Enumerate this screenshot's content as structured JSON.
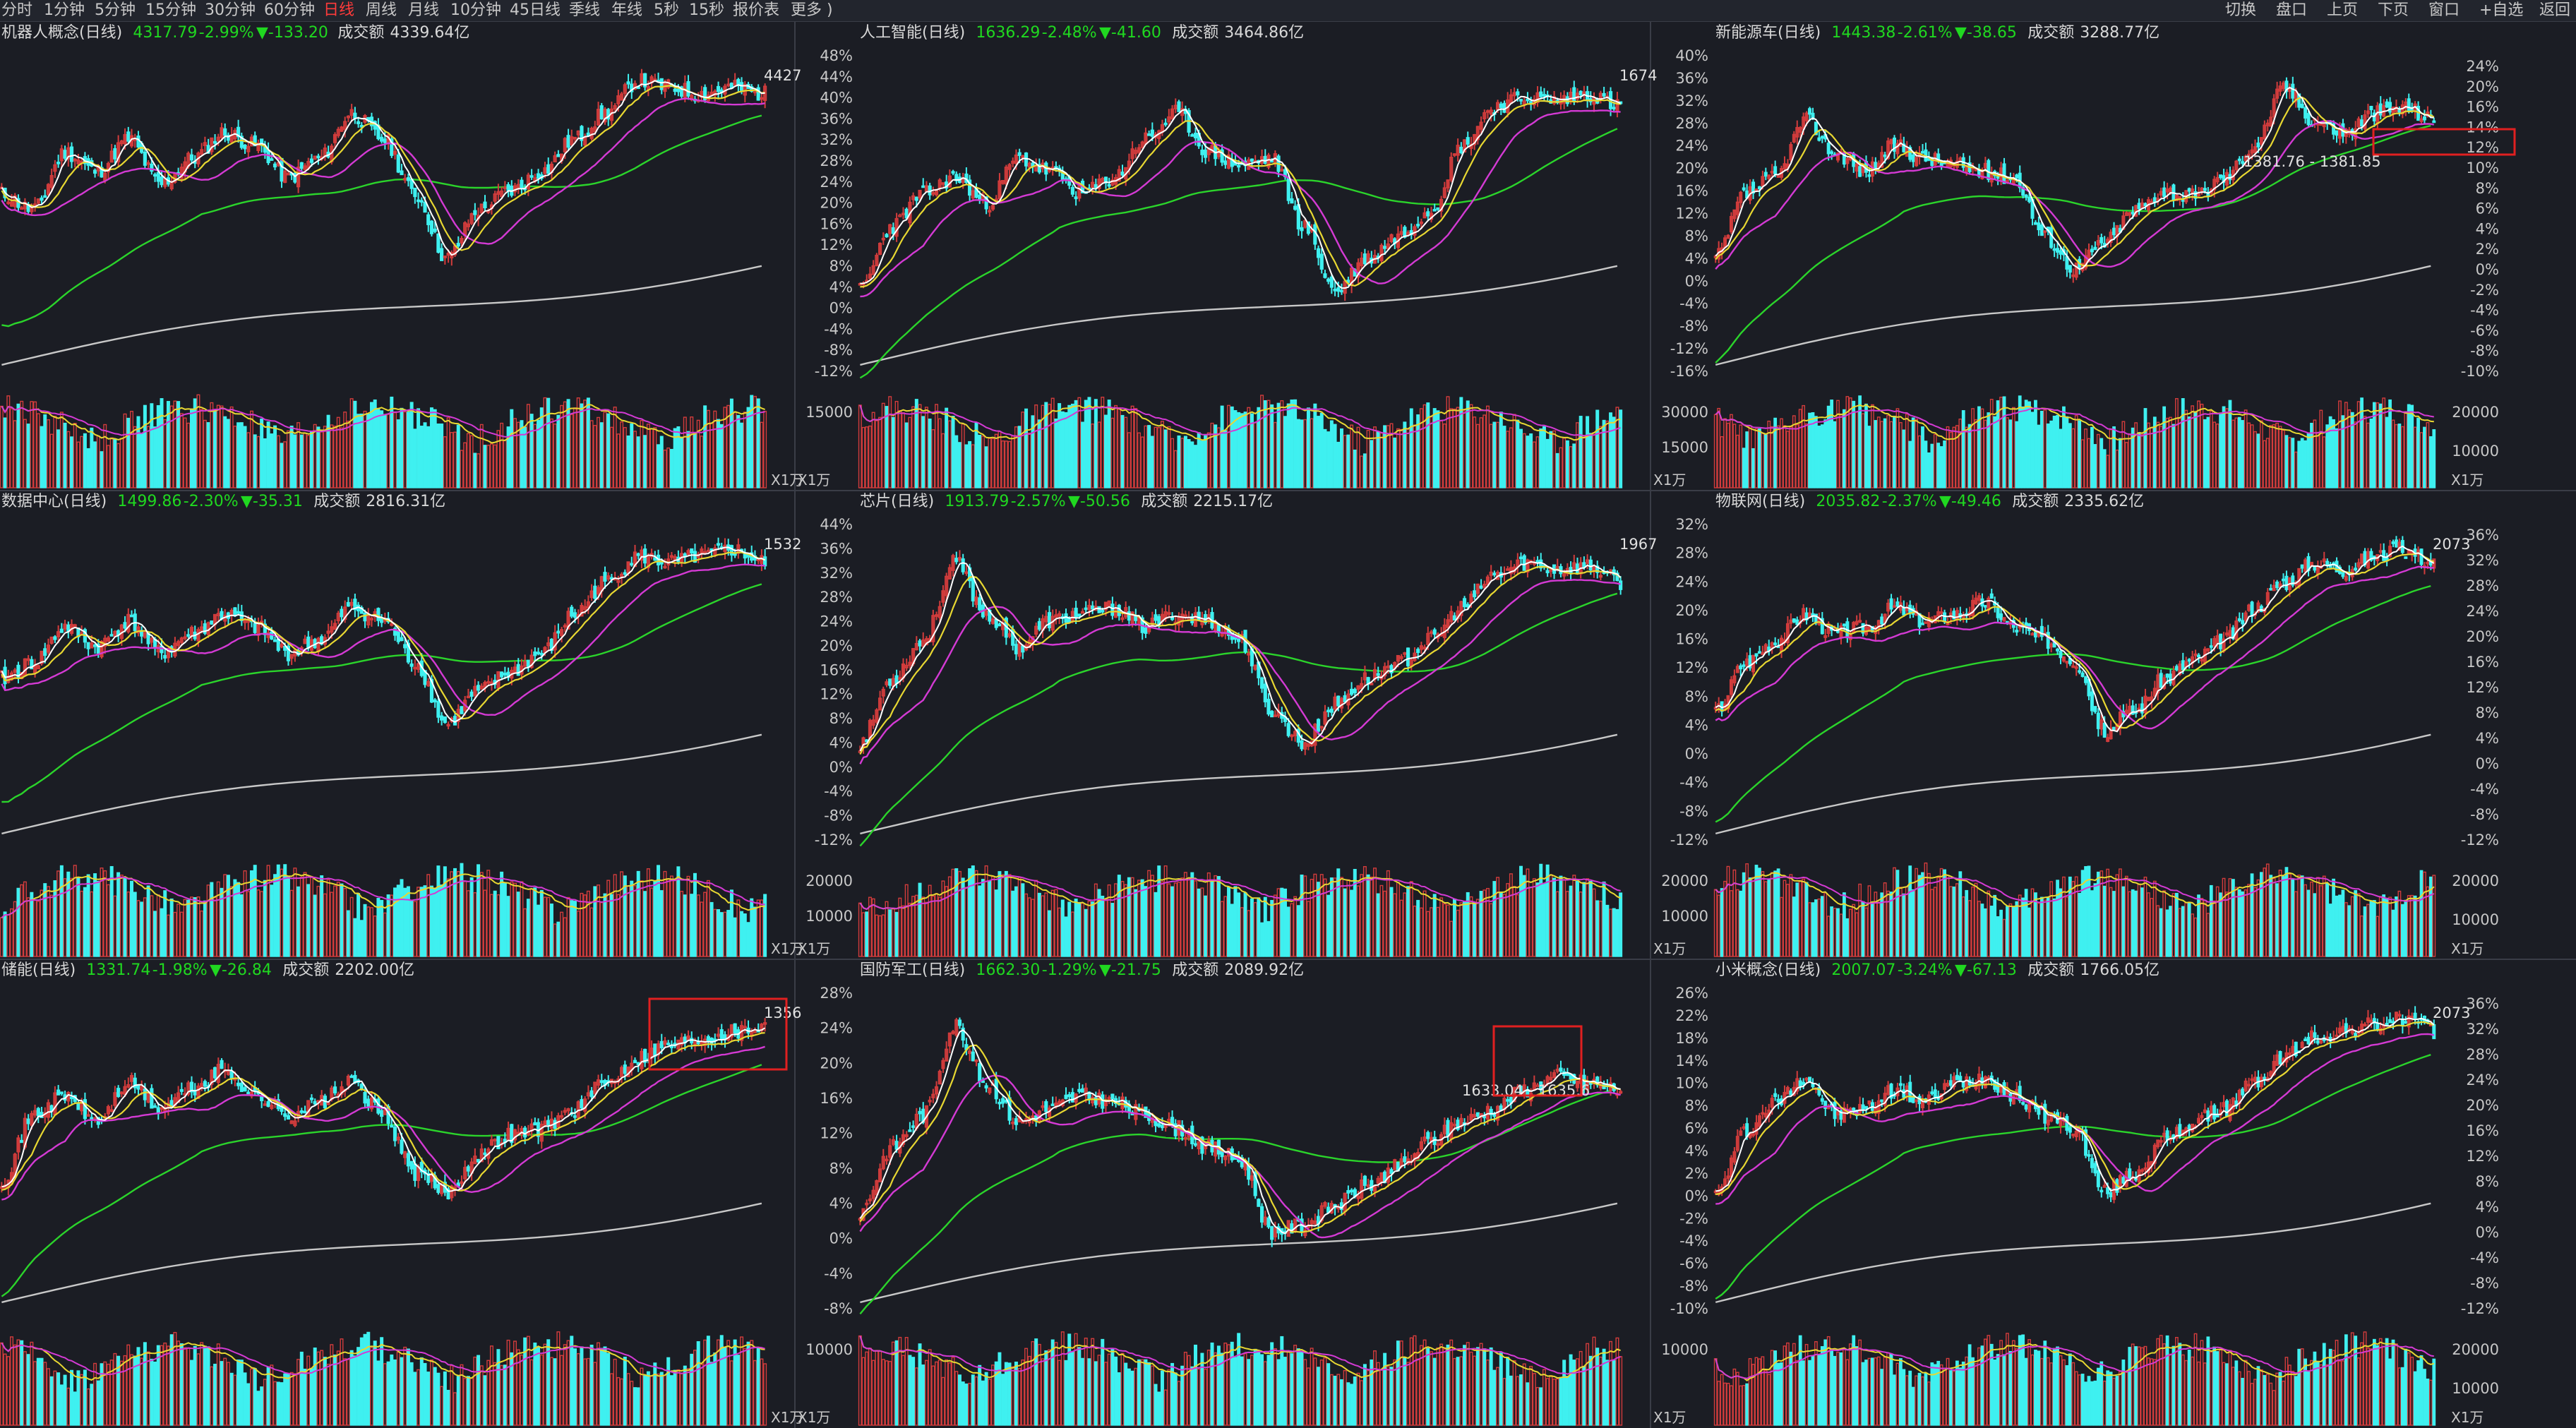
{
  "toolbar": {
    "items": [
      "分时",
      "1分钟",
      "5分钟",
      "15分钟",
      "30分钟",
      "60分钟",
      "日线",
      "周线",
      "月线",
      "10分钟",
      "45日线",
      "季线",
      "年线",
      "5秒",
      "15秒",
      "报价表",
      "更多 )"
    ],
    "active": "日线",
    "right_items": [
      "切换",
      "盘口",
      "上页",
      "下页",
      "窗口",
      "+自选",
      "返回"
    ]
  },
  "volume_unit": "X1万",
  "colors": {
    "up": "#d23c3c",
    "down": "#3ff0f0",
    "ma5": "#ffffff",
    "ma10": "#e8d832",
    "ma20": "#d43ad4",
    "ma60": "#2bd42b",
    "ma250": "#c8c8c8",
    "grid_bg": "#1b1d24",
    "divider": "#3a3d47",
    "box": "#e02020"
  },
  "panels": [
    {
      "name": "机器人概念(日线)",
      "price": "4317.79",
      "pct": "-2.99%",
      "chg": "▼-133.20",
      "amount_label": "成交额",
      "amount": "4339.64亿",
      "high_label": "4427",
      "y_labels": [],
      "vol_labels": [],
      "highlight": false,
      "seed": 11,
      "shape": [
        0.55,
        0.5,
        0.68,
        0.62,
        0.72,
        0.58,
        0.66,
        0.74,
        0.7,
        0.6,
        0.66,
        0.8,
        0.72,
        0.55,
        0.35,
        0.5,
        0.56,
        0.62,
        0.72,
        0.8,
        0.9,
        0.88,
        0.86,
        0.88,
        0.86
      ]
    },
    {
      "name": "人工智能(日线)",
      "price": "1636.29",
      "pct": "-2.48%",
      "chg": "▼-41.60",
      "amount_label": "成交额",
      "amount": "3464.86亿",
      "high_label": "1674",
      "y_labels": [
        "48%",
        "44%",
        "40%",
        "36%",
        "32%",
        "28%",
        "24%",
        "20%",
        "16%",
        "12%",
        "8%",
        "4%",
        "0%",
        "-4%",
        "-8%",
        "-12%"
      ],
      "vol_labels": [
        "15000"
      ],
      "highlight": false,
      "seed": 23,
      "shape": [
        0.25,
        0.45,
        0.55,
        0.6,
        0.52,
        0.66,
        0.62,
        0.55,
        0.6,
        0.72,
        0.8,
        0.68,
        0.64,
        0.66,
        0.45,
        0.25,
        0.35,
        0.42,
        0.5,
        0.7,
        0.82,
        0.85,
        0.84,
        0.86,
        0.82
      ]
    },
    {
      "name": "新能源车(日线)",
      "price": "1443.38",
      "pct": "-2.61%",
      "chg": "▼-38.65",
      "amount_label": "成交额",
      "amount": "3288.77亿",
      "high_label": "",
      "y_labels": [
        "40%",
        "36%",
        "32%",
        "28%",
        "24%",
        "20%",
        "16%",
        "12%",
        "8%",
        "4%",
        "0%",
        "-4%",
        "-8%",
        "-12%",
        "-16%"
      ],
      "right_labels": [
        "24%",
        "20%",
        "16%",
        "14%",
        "12%",
        "10%",
        "8%",
        "6%",
        "4%",
        "2%",
        "0%",
        "-2%",
        "-4%",
        "-6%",
        "-8%",
        "-10%"
      ],
      "vol_labels": [
        "30000",
        "15000"
      ],
      "right_vol_labels": [
        "20000",
        "10000"
      ],
      "range_label": "1381.76 - 1381.85",
      "highlight": true,
      "seed": 37,
      "shape": [
        0.35,
        0.55,
        0.6,
        0.78,
        0.68,
        0.62,
        0.7,
        0.66,
        0.64,
        0.62,
        0.6,
        0.42,
        0.32,
        0.4,
        0.5,
        0.56,
        0.54,
        0.6,
        0.7,
        0.88,
        0.78,
        0.74,
        0.8,
        0.82,
        0.78
      ]
    },
    {
      "name": "数据中心(日线)",
      "price": "1499.86",
      "pct": "-2.30%",
      "chg": "▼-35.31",
      "amount_label": "成交额",
      "amount": "2816.31亿",
      "high_label": "1532",
      "y_labels": [],
      "vol_labels": [],
      "highlight": false,
      "seed": 41,
      "shape": [
        0.5,
        0.55,
        0.66,
        0.6,
        0.68,
        0.58,
        0.64,
        0.7,
        0.66,
        0.58,
        0.62,
        0.72,
        0.68,
        0.55,
        0.36,
        0.46,
        0.52,
        0.58,
        0.7,
        0.8,
        0.88,
        0.86,
        0.88,
        0.9,
        0.86
      ]
    },
    {
      "name": "芯片(日线)",
      "price": "1913.79",
      "pct": "-2.57%",
      "chg": "▼-50.56",
      "amount_label": "成交额",
      "amount": "2215.17亿",
      "high_label": "1967",
      "y_labels": [
        "44%",
        "36%",
        "32%",
        "28%",
        "24%",
        "20%",
        "16%",
        "12%",
        "8%",
        "4%",
        "0%",
        "-4%",
        "-8%",
        "-12%"
      ],
      "vol_labels": [
        "20000",
        "10000"
      ],
      "highlight": false,
      "seed": 53,
      "shape": [
        0.3,
        0.5,
        0.62,
        0.86,
        0.7,
        0.6,
        0.68,
        0.7,
        0.72,
        0.66,
        0.7,
        0.68,
        0.62,
        0.4,
        0.3,
        0.42,
        0.5,
        0.55,
        0.62,
        0.72,
        0.82,
        0.86,
        0.84,
        0.85,
        0.8
      ]
    },
    {
      "name": "物联网(日线)",
      "price": "2035.82",
      "pct": "-2.37%",
      "chg": "▼-49.46",
      "amount_label": "成交额",
      "amount": "2335.62亿",
      "high_label": "2073",
      "y_labels": [
        "32%",
        "28%",
        "24%",
        "20%",
        "16%",
        "12%",
        "8%",
        "4%",
        "0%",
        "-4%",
        "-8%",
        "-12%"
      ],
      "right_labels": [
        "36%",
        "32%",
        "28%",
        "24%",
        "20%",
        "16%",
        "12%",
        "8%",
        "4%",
        "0%",
        "-4%",
        "-8%",
        "-12%"
      ],
      "vol_labels": [
        "20000",
        "10000"
      ],
      "right_vol_labels": [
        "20000",
        "10000"
      ],
      "highlight": false,
      "seed": 67,
      "shape": [
        0.4,
        0.55,
        0.62,
        0.7,
        0.64,
        0.66,
        0.72,
        0.68,
        0.7,
        0.74,
        0.66,
        0.62,
        0.56,
        0.34,
        0.4,
        0.5,
        0.56,
        0.62,
        0.72,
        0.8,
        0.86,
        0.84,
        0.88,
        0.9,
        0.86
      ]
    },
    {
      "name": "储能(日线)",
      "price": "1331.74",
      "pct": "-1.98%",
      "chg": "▼-26.84",
      "amount_label": "成交额",
      "amount": "2202.00亿",
      "high_label": "1356",
      "y_labels": [],
      "vol_labels": [],
      "highlight": true,
      "seed": 71,
      "shape": [
        0.4,
        0.6,
        0.66,
        0.58,
        0.7,
        0.62,
        0.68,
        0.74,
        0.66,
        0.6,
        0.64,
        0.7,
        0.6,
        0.42,
        0.36,
        0.48,
        0.54,
        0.56,
        0.62,
        0.7,
        0.78,
        0.82,
        0.84,
        0.86,
        0.88
      ]
    },
    {
      "name": "国防军工(日线)",
      "price": "1662.30",
      "pct": "-1.29%",
      "chg": "▼-21.75",
      "amount_label": "成交额",
      "amount": "2089.92亿",
      "high_label": "",
      "y_labels": [
        "28%",
        "24%",
        "20%",
        "16%",
        "12%",
        "8%",
        "4%",
        "0%",
        "-4%",
        "-8%"
      ],
      "vol_labels": [
        "10000"
      ],
      "range_label": "1633.04 - 1635.6",
      "highlight": true,
      "seed": 83,
      "shape": [
        0.3,
        0.5,
        0.6,
        0.88,
        0.7,
        0.58,
        0.62,
        0.66,
        0.64,
        0.6,
        0.56,
        0.5,
        0.46,
        0.24,
        0.26,
        0.32,
        0.38,
        0.44,
        0.52,
        0.58,
        0.62,
        0.68,
        0.72,
        0.7,
        0.68
      ]
    },
    {
      "name": "小米概念(日线)",
      "price": "2007.07",
      "pct": "-3.24%",
      "chg": "▼-67.13",
      "amount_label": "成交额",
      "amount": "1766.05亿",
      "high_label": "2073",
      "y_labels": [
        "26%",
        "22%",
        "18%",
        "14%",
        "10%",
        "8%",
        "6%",
        "4%",
        "2%",
        "0%",
        "-2%",
        "-4%",
        "-6%",
        "-8%",
        "-10%"
      ],
      "right_labels": [
        "36%",
        "32%",
        "28%",
        "24%",
        "20%",
        "16%",
        "12%",
        "8%",
        "4%",
        "0%",
        "-4%",
        "-8%",
        "-12%"
      ],
      "vol_labels": [
        "10000"
      ],
      "right_vol_labels": [
        "20000",
        "10000"
      ],
      "highlight": false,
      "seed": 97,
      "shape": [
        0.35,
        0.55,
        0.64,
        0.72,
        0.6,
        0.62,
        0.68,
        0.64,
        0.7,
        0.72,
        0.66,
        0.6,
        0.56,
        0.36,
        0.42,
        0.52,
        0.58,
        0.62,
        0.7,
        0.78,
        0.84,
        0.86,
        0.88,
        0.9,
        0.86
      ]
    }
  ]
}
